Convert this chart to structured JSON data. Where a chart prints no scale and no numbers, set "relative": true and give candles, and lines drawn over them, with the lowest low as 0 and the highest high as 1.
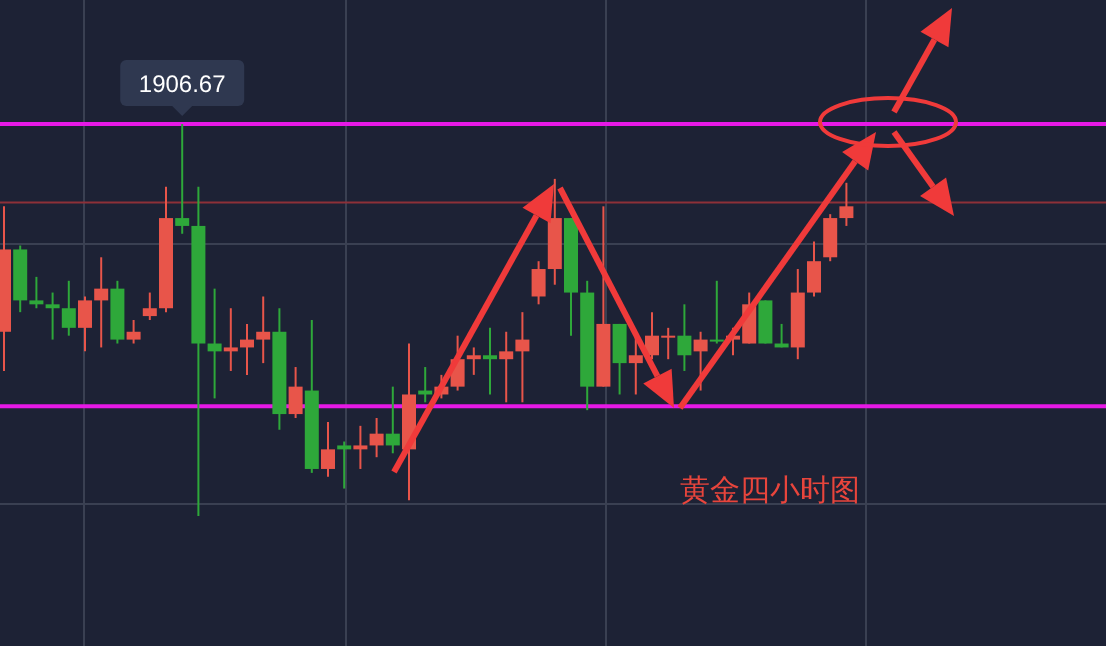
{
  "chart_data": {
    "type": "candlestick",
    "relative": true,
    "categories": [
      null,
      null,
      null,
      null,
      null,
      null,
      null,
      null,
      null,
      null,
      null,
      null,
      null,
      null,
      null,
      null,
      null,
      null,
      null,
      null,
      null,
      null,
      null,
      null,
      null,
      null,
      null,
      null,
      null,
      null,
      null,
      null,
      null,
      null,
      null,
      null,
      null,
      null,
      null,
      null,
      null,
      null,
      null,
      null,
      null,
      null,
      null,
      null,
      null,
      null,
      null,
      null,
      null
    ],
    "ohlc": [
      [
        0.47,
        0.79,
        0.37,
        0.68
      ],
      [
        0.68,
        0.69,
        0.52,
        0.55
      ],
      [
        0.55,
        0.61,
        0.53,
        0.54
      ],
      [
        0.54,
        0.57,
        0.45,
        0.53
      ],
      [
        0.53,
        0.6,
        0.46,
        0.48
      ],
      [
        0.48,
        0.56,
        0.42,
        0.55
      ],
      [
        0.55,
        0.66,
        0.43,
        0.58
      ],
      [
        0.58,
        0.6,
        0.44,
        0.45
      ],
      [
        0.45,
        0.5,
        0.44,
        0.47
      ],
      [
        0.51,
        0.57,
        0.5,
        0.53
      ],
      [
        0.53,
        0.84,
        0.52,
        0.76
      ],
      [
        0.76,
        1.0,
        0.72,
        0.74
      ],
      [
        0.74,
        0.84,
        0.0,
        0.44
      ],
      [
        0.44,
        0.58,
        0.3,
        0.42
      ],
      [
        0.42,
        0.53,
        0.37,
        0.43
      ],
      [
        0.43,
        0.49,
        0.36,
        0.45
      ],
      [
        0.45,
        0.56,
        0.39,
        0.47
      ],
      [
        0.47,
        0.53,
        0.22,
        0.26
      ],
      [
        0.26,
        0.38,
        0.25,
        0.33
      ],
      [
        0.32,
        0.5,
        0.11,
        0.12
      ],
      [
        0.12,
        0.24,
        0.1,
        0.17
      ],
      [
        0.18,
        0.19,
        0.07,
        0.17
      ],
      [
        0.17,
        0.23,
        0.12,
        0.18
      ],
      [
        0.18,
        0.25,
        0.15,
        0.21
      ],
      [
        0.21,
        0.33,
        0.16,
        0.18
      ],
      [
        0.17,
        0.44,
        0.04,
        0.31
      ],
      [
        0.32,
        0.38,
        0.29,
        0.31
      ],
      [
        0.31,
        0.36,
        0.3,
        0.33
      ],
      [
        0.33,
        0.46,
        0.32,
        0.4
      ],
      [
        0.4,
        0.43,
        0.36,
        0.41
      ],
      [
        0.41,
        0.48,
        0.31,
        0.4
      ],
      [
        0.4,
        0.47,
        0.29,
        0.42
      ],
      [
        0.42,
        0.52,
        0.29,
        0.45
      ],
      [
        0.56,
        0.65,
        0.54,
        0.63
      ],
      [
        0.63,
        0.86,
        0.59,
        0.76
      ],
      [
        0.76,
        0.76,
        0.46,
        0.57
      ],
      [
        0.57,
        0.6,
        0.27,
        0.33
      ],
      [
        0.33,
        0.79,
        0.33,
        0.49
      ],
      [
        0.49,
        0.49,
        0.31,
        0.39
      ],
      [
        0.39,
        0.46,
        0.31,
        0.41
      ],
      [
        0.41,
        0.52,
        0.4,
        0.46
      ],
      [
        0.46,
        0.48,
        0.4,
        0.46
      ],
      [
        0.46,
        0.54,
        0.37,
        0.41
      ],
      [
        0.42,
        0.47,
        0.32,
        0.45
      ],
      [
        0.45,
        0.6,
        0.44,
        0.45
      ],
      [
        0.45,
        0.48,
        0.41,
        0.46
      ],
      [
        0.44,
        0.57,
        0.44,
        0.54
      ],
      [
        0.55,
        0.55,
        0.44,
        0.44
      ],
      [
        0.44,
        0.49,
        0.43,
        0.43
      ],
      [
        0.43,
        0.63,
        0.4,
        0.57
      ],
      [
        0.57,
        0.7,
        0.56,
        0.65
      ],
      [
        0.66,
        0.77,
        0.65,
        0.76
      ],
      [
        0.76,
        0.85,
        0.74,
        0.79
      ]
    ],
    "colors": [
      "#e8554a",
      "#2ea83a",
      "#2ea83a",
      "#2ea83a",
      "#2ea83a",
      "#e8554a",
      "#e8554a",
      "#2ea83a",
      "#e8554a",
      "#e8554a",
      "#e8554a",
      "#2ea83a",
      "#2ea83a",
      "#2ea83a",
      "#e8554a",
      "#e8554a",
      "#e8554a",
      "#2ea83a",
      "#e8554a",
      "#2ea83a",
      "#e8554a",
      "#2ea83a",
      "#e8554a",
      "#e8554a",
      "#2ea83a",
      "#e8554a",
      "#2ea83a",
      "#e8554a",
      "#e8554a",
      "#e8554a",
      "#2ea83a",
      "#e8554a",
      "#e8554a",
      "#e8554a",
      "#e8554a",
      "#2ea83a",
      "#2ea83a",
      "#e8554a",
      "#2ea83a",
      "#e8554a",
      "#e8554a",
      "#e8554a",
      "#2ea83a",
      "#e8554a",
      "#2ea83a",
      "#e8554a",
      "#e8554a",
      "#2ea83a",
      "#2ea83a",
      "#e8554a",
      "#e8554a",
      "#e8554a",
      "#e8554a"
    ],
    "ref_lines": [
      {
        "axis": "y",
        "value": 1,
        "color": "#e619e6"
      },
      {
        "axis": "y",
        "value": 0.28,
        "color": "#e619e6"
      },
      {
        "axis": "y",
        "value": 0.8,
        "color": "#8e3038"
      }
    ],
    "annotations": [
      "1906.67",
      "黄金四小时图"
    ],
    "grid": true
  }
}
